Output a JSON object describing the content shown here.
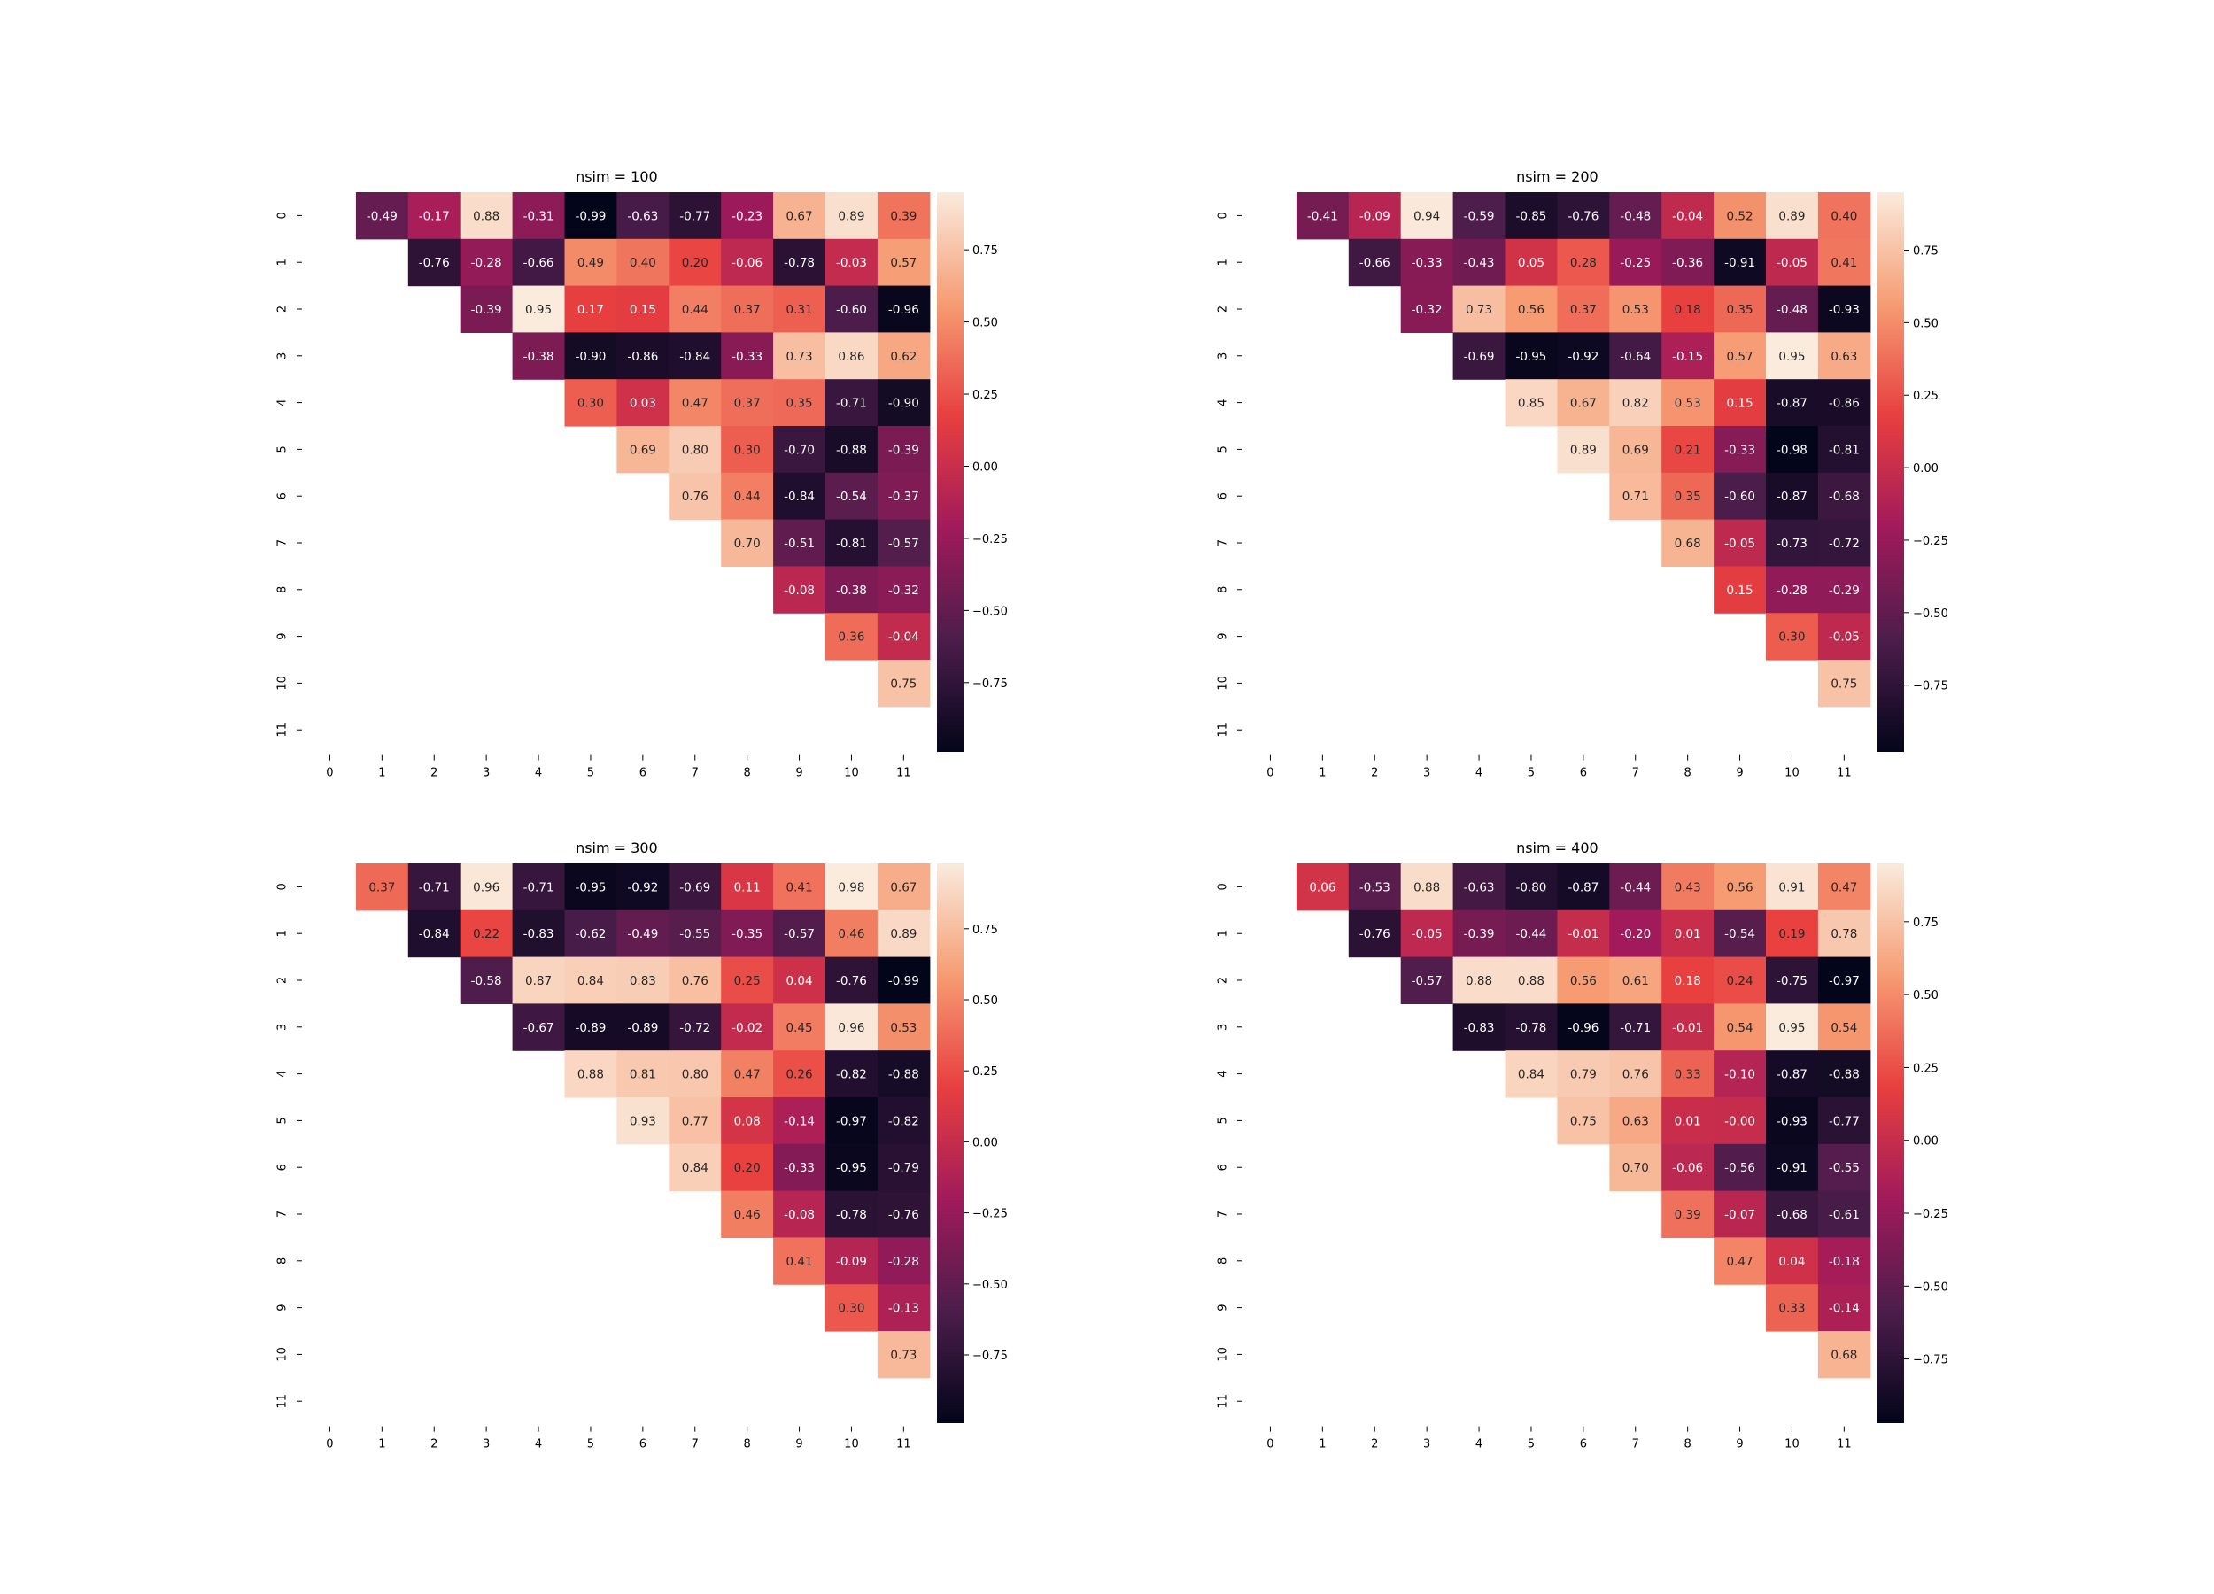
{
  "chart_data": [
    {
      "type": "heatmap",
      "title": "nsim = 100",
      "x_ticks": [
        "0",
        "1",
        "2",
        "3",
        "4",
        "5",
        "6",
        "7",
        "8",
        "9",
        "10",
        "11"
      ],
      "y_ticks": [
        "0",
        "1",
        "2",
        "3",
        "4",
        "5",
        "6",
        "7",
        "8",
        "9",
        "10",
        "11"
      ],
      "colorbar_ticks": [
        "0.75",
        "0.50",
        "0.25",
        "0.00",
        "−0.25",
        "−0.50",
        "−0.75"
      ],
      "colorbar_tick_values": [
        0.75,
        0.5,
        0.25,
        0,
        -0.25,
        -0.5,
        -0.75
      ],
      "vmin": -0.99,
      "vmax": 0.95,
      "colormap": [
        "#03051a",
        "#4c1d4b",
        "#a11a5b",
        "#e83f3f",
        "#f69c73",
        "#faebdd"
      ],
      "matrix": [
        [
          null,
          -0.49,
          -0.17,
          0.88,
          -0.31,
          -0.99,
          -0.63,
          -0.77,
          -0.23,
          0.67,
          0.89,
          0.39
        ],
        [
          null,
          null,
          -0.76,
          -0.28,
          -0.66,
          0.49,
          0.4,
          0.2,
          -0.06,
          -0.78,
          -0.03,
          0.57
        ],
        [
          null,
          null,
          null,
          -0.39,
          0.95,
          0.17,
          0.15,
          0.44,
          0.37,
          0.31,
          -0.6,
          -0.96
        ],
        [
          null,
          null,
          null,
          null,
          -0.38,
          -0.9,
          -0.86,
          -0.84,
          -0.33,
          0.73,
          0.86,
          0.62
        ],
        [
          null,
          null,
          null,
          null,
          null,
          0.3,
          0.03,
          0.47,
          0.37,
          0.35,
          -0.71,
          -0.9
        ],
        [
          null,
          null,
          null,
          null,
          null,
          null,
          0.69,
          0.8,
          0.3,
          -0.7,
          -0.88,
          -0.39
        ],
        [
          null,
          null,
          null,
          null,
          null,
          null,
          null,
          0.76,
          0.44,
          -0.84,
          -0.54,
          -0.37
        ],
        [
          null,
          null,
          null,
          null,
          null,
          null,
          null,
          null,
          0.7,
          -0.51,
          -0.81,
          -0.57
        ],
        [
          null,
          null,
          null,
          null,
          null,
          null,
          null,
          null,
          null,
          -0.08,
          -0.38,
          -0.32
        ],
        [
          null,
          null,
          null,
          null,
          null,
          null,
          null,
          null,
          null,
          null,
          0.36,
          -0.04
        ],
        [
          null,
          null,
          null,
          null,
          null,
          null,
          null,
          null,
          null,
          null,
          null,
          0.75
        ],
        [
          null,
          null,
          null,
          null,
          null,
          null,
          null,
          null,
          null,
          null,
          null,
          null
        ]
      ]
    },
    {
      "type": "heatmap",
      "title": "nsim = 200",
      "x_ticks": [
        "0",
        "1",
        "2",
        "3",
        "4",
        "5",
        "6",
        "7",
        "8",
        "9",
        "10",
        "11"
      ],
      "y_ticks": [
        "0",
        "1",
        "2",
        "3",
        "4",
        "5",
        "6",
        "7",
        "8",
        "9",
        "10",
        "11"
      ],
      "colorbar_ticks": [
        "0.75",
        "0.50",
        "0.25",
        "0.00",
        "−0.25",
        "−0.50",
        "−0.75"
      ],
      "colorbar_tick_values": [
        0.75,
        0.5,
        0.25,
        0,
        -0.25,
        -0.5,
        -0.75
      ],
      "vmin": -0.98,
      "vmax": 0.95,
      "colormap": [
        "#03051a",
        "#4c1d4b",
        "#a11a5b",
        "#e83f3f",
        "#f69c73",
        "#faebdd"
      ],
      "matrix": [
        [
          null,
          -0.41,
          -0.09,
          0.94,
          -0.59,
          -0.85,
          -0.76,
          -0.48,
          -0.04,
          0.52,
          0.89,
          0.4
        ],
        [
          null,
          null,
          -0.66,
          -0.33,
          -0.43,
          0.05,
          0.28,
          -0.25,
          -0.36,
          -0.91,
          -0.05,
          0.41
        ],
        [
          null,
          null,
          null,
          -0.32,
          0.73,
          0.56,
          0.37,
          0.53,
          0.18,
          0.35,
          -0.48,
          -0.93
        ],
        [
          null,
          null,
          null,
          null,
          -0.69,
          -0.95,
          -0.92,
          -0.64,
          -0.15,
          0.57,
          0.95,
          0.63
        ],
        [
          null,
          null,
          null,
          null,
          null,
          0.85,
          0.67,
          0.82,
          0.53,
          0.15,
          -0.87,
          -0.86
        ],
        [
          null,
          null,
          null,
          null,
          null,
          null,
          0.89,
          0.69,
          0.21,
          -0.33,
          -0.98,
          -0.81
        ],
        [
          null,
          null,
          null,
          null,
          null,
          null,
          null,
          0.71,
          0.35,
          -0.6,
          -0.87,
          -0.68
        ],
        [
          null,
          null,
          null,
          null,
          null,
          null,
          null,
          null,
          0.68,
          -0.05,
          -0.73,
          -0.72
        ],
        [
          null,
          null,
          null,
          null,
          null,
          null,
          null,
          null,
          null,
          0.15,
          -0.28,
          -0.29
        ],
        [
          null,
          null,
          null,
          null,
          null,
          null,
          null,
          null,
          null,
          null,
          0.3,
          -0.05
        ],
        [
          null,
          null,
          null,
          null,
          null,
          null,
          null,
          null,
          null,
          null,
          null,
          0.75
        ],
        [
          null,
          null,
          null,
          null,
          null,
          null,
          null,
          null,
          null,
          null,
          null,
          null
        ]
      ]
    },
    {
      "type": "heatmap",
      "title": "nsim = 300",
      "x_ticks": [
        "0",
        "1",
        "2",
        "3",
        "4",
        "5",
        "6",
        "7",
        "8",
        "9",
        "10",
        "11"
      ],
      "y_ticks": [
        "0",
        "1",
        "2",
        "3",
        "4",
        "5",
        "6",
        "7",
        "8",
        "9",
        "10",
        "11"
      ],
      "colorbar_ticks": [
        "0.75",
        "0.50",
        "0.25",
        "0.00",
        "−0.25",
        "−0.50",
        "−0.75"
      ],
      "colorbar_tick_values": [
        0.75,
        0.5,
        0.25,
        0,
        -0.25,
        -0.5,
        -0.75
      ],
      "vmin": -0.99,
      "vmax": 0.98,
      "colormap": [
        "#03051a",
        "#4c1d4b",
        "#a11a5b",
        "#e83f3f",
        "#f69c73",
        "#faebdd"
      ],
      "matrix": [
        [
          null,
          0.37,
          -0.71,
          0.96,
          -0.71,
          -0.95,
          -0.92,
          -0.69,
          0.11,
          0.41,
          0.98,
          0.67
        ],
        [
          null,
          null,
          -0.84,
          0.22,
          -0.83,
          -0.62,
          -0.49,
          -0.55,
          -0.35,
          -0.57,
          0.46,
          0.89
        ],
        [
          null,
          null,
          null,
          -0.58,
          0.87,
          0.84,
          0.83,
          0.76,
          0.25,
          0.04,
          -0.76,
          -0.99
        ],
        [
          null,
          null,
          null,
          null,
          -0.67,
          -0.89,
          -0.89,
          -0.72,
          -0.02,
          0.45,
          0.96,
          0.53
        ],
        [
          null,
          null,
          null,
          null,
          null,
          0.88,
          0.81,
          0.8,
          0.47,
          0.26,
          -0.82,
          -0.88
        ],
        [
          null,
          null,
          null,
          null,
          null,
          null,
          0.93,
          0.77,
          0.08,
          -0.14,
          -0.97,
          -0.82
        ],
        [
          null,
          null,
          null,
          null,
          null,
          null,
          null,
          0.84,
          0.2,
          -0.33,
          -0.95,
          -0.79
        ],
        [
          null,
          null,
          null,
          null,
          null,
          null,
          null,
          null,
          0.46,
          -0.08,
          -0.78,
          -0.76
        ],
        [
          null,
          null,
          null,
          null,
          null,
          null,
          null,
          null,
          null,
          0.41,
          -0.09,
          -0.28
        ],
        [
          null,
          null,
          null,
          null,
          null,
          null,
          null,
          null,
          null,
          null,
          0.3,
          -0.13
        ],
        [
          null,
          null,
          null,
          null,
          null,
          null,
          null,
          null,
          null,
          null,
          null,
          0.73
        ],
        [
          null,
          null,
          null,
          null,
          null,
          null,
          null,
          null,
          null,
          null,
          null,
          null
        ]
      ]
    },
    {
      "type": "heatmap",
      "title": "nsim = 400",
      "x_ticks": [
        "0",
        "1",
        "2",
        "3",
        "4",
        "5",
        "6",
        "7",
        "8",
        "9",
        "10",
        "11"
      ],
      "y_ticks": [
        "0",
        "1",
        "2",
        "3",
        "4",
        "5",
        "6",
        "7",
        "8",
        "9",
        "10",
        "11"
      ],
      "colorbar_ticks": [
        "0.75",
        "0.50",
        "0.25",
        "0.00",
        "−0.25",
        "−0.50",
        "−0.75"
      ],
      "colorbar_tick_values": [
        0.75,
        0.5,
        0.25,
        0,
        -0.25,
        -0.5,
        -0.75
      ],
      "vmin": -0.97,
      "vmax": 0.95,
      "colormap": [
        "#03051a",
        "#4c1d4b",
        "#a11a5b",
        "#e83f3f",
        "#f69c73",
        "#faebdd"
      ],
      "matrix": [
        [
          null,
          0.06,
          -0.53,
          0.88,
          -0.63,
          -0.8,
          -0.87,
          -0.44,
          0.43,
          0.56,
          0.91,
          0.47
        ],
        [
          null,
          null,
          -0.76,
          -0.05,
          -0.39,
          -0.44,
          -0.01,
          -0.2,
          0.01,
          -0.54,
          0.19,
          0.78
        ],
        [
          null,
          null,
          null,
          -0.57,
          0.88,
          0.88,
          0.56,
          0.61,
          0.18,
          0.24,
          -0.75,
          -0.97
        ],
        [
          null,
          null,
          null,
          null,
          -0.83,
          -0.78,
          -0.96,
          -0.71,
          -0.01,
          0.54,
          0.95,
          0.54
        ],
        [
          null,
          null,
          null,
          null,
          null,
          0.84,
          0.79,
          0.76,
          0.33,
          -0.1,
          -0.87,
          -0.88
        ],
        [
          null,
          null,
          null,
          null,
          null,
          null,
          0.75,
          0.63,
          0.01,
          -0.0,
          -0.93,
          -0.77
        ],
        [
          null,
          null,
          null,
          null,
          null,
          null,
          null,
          0.7,
          -0.06,
          -0.56,
          -0.91,
          -0.55
        ],
        [
          null,
          null,
          null,
          null,
          null,
          null,
          null,
          null,
          0.39,
          -0.07,
          -0.68,
          -0.61
        ],
        [
          null,
          null,
          null,
          null,
          null,
          null,
          null,
          null,
          null,
          0.47,
          0.04,
          -0.18
        ],
        [
          null,
          null,
          null,
          null,
          null,
          null,
          null,
          null,
          null,
          null,
          0.33,
          -0.14
        ],
        [
          null,
          null,
          null,
          null,
          null,
          null,
          null,
          null,
          null,
          null,
          null,
          0.68
        ],
        [
          null,
          null,
          null,
          null,
          null,
          null,
          null,
          null,
          null,
          null,
          null,
          null
        ]
      ]
    }
  ]
}
